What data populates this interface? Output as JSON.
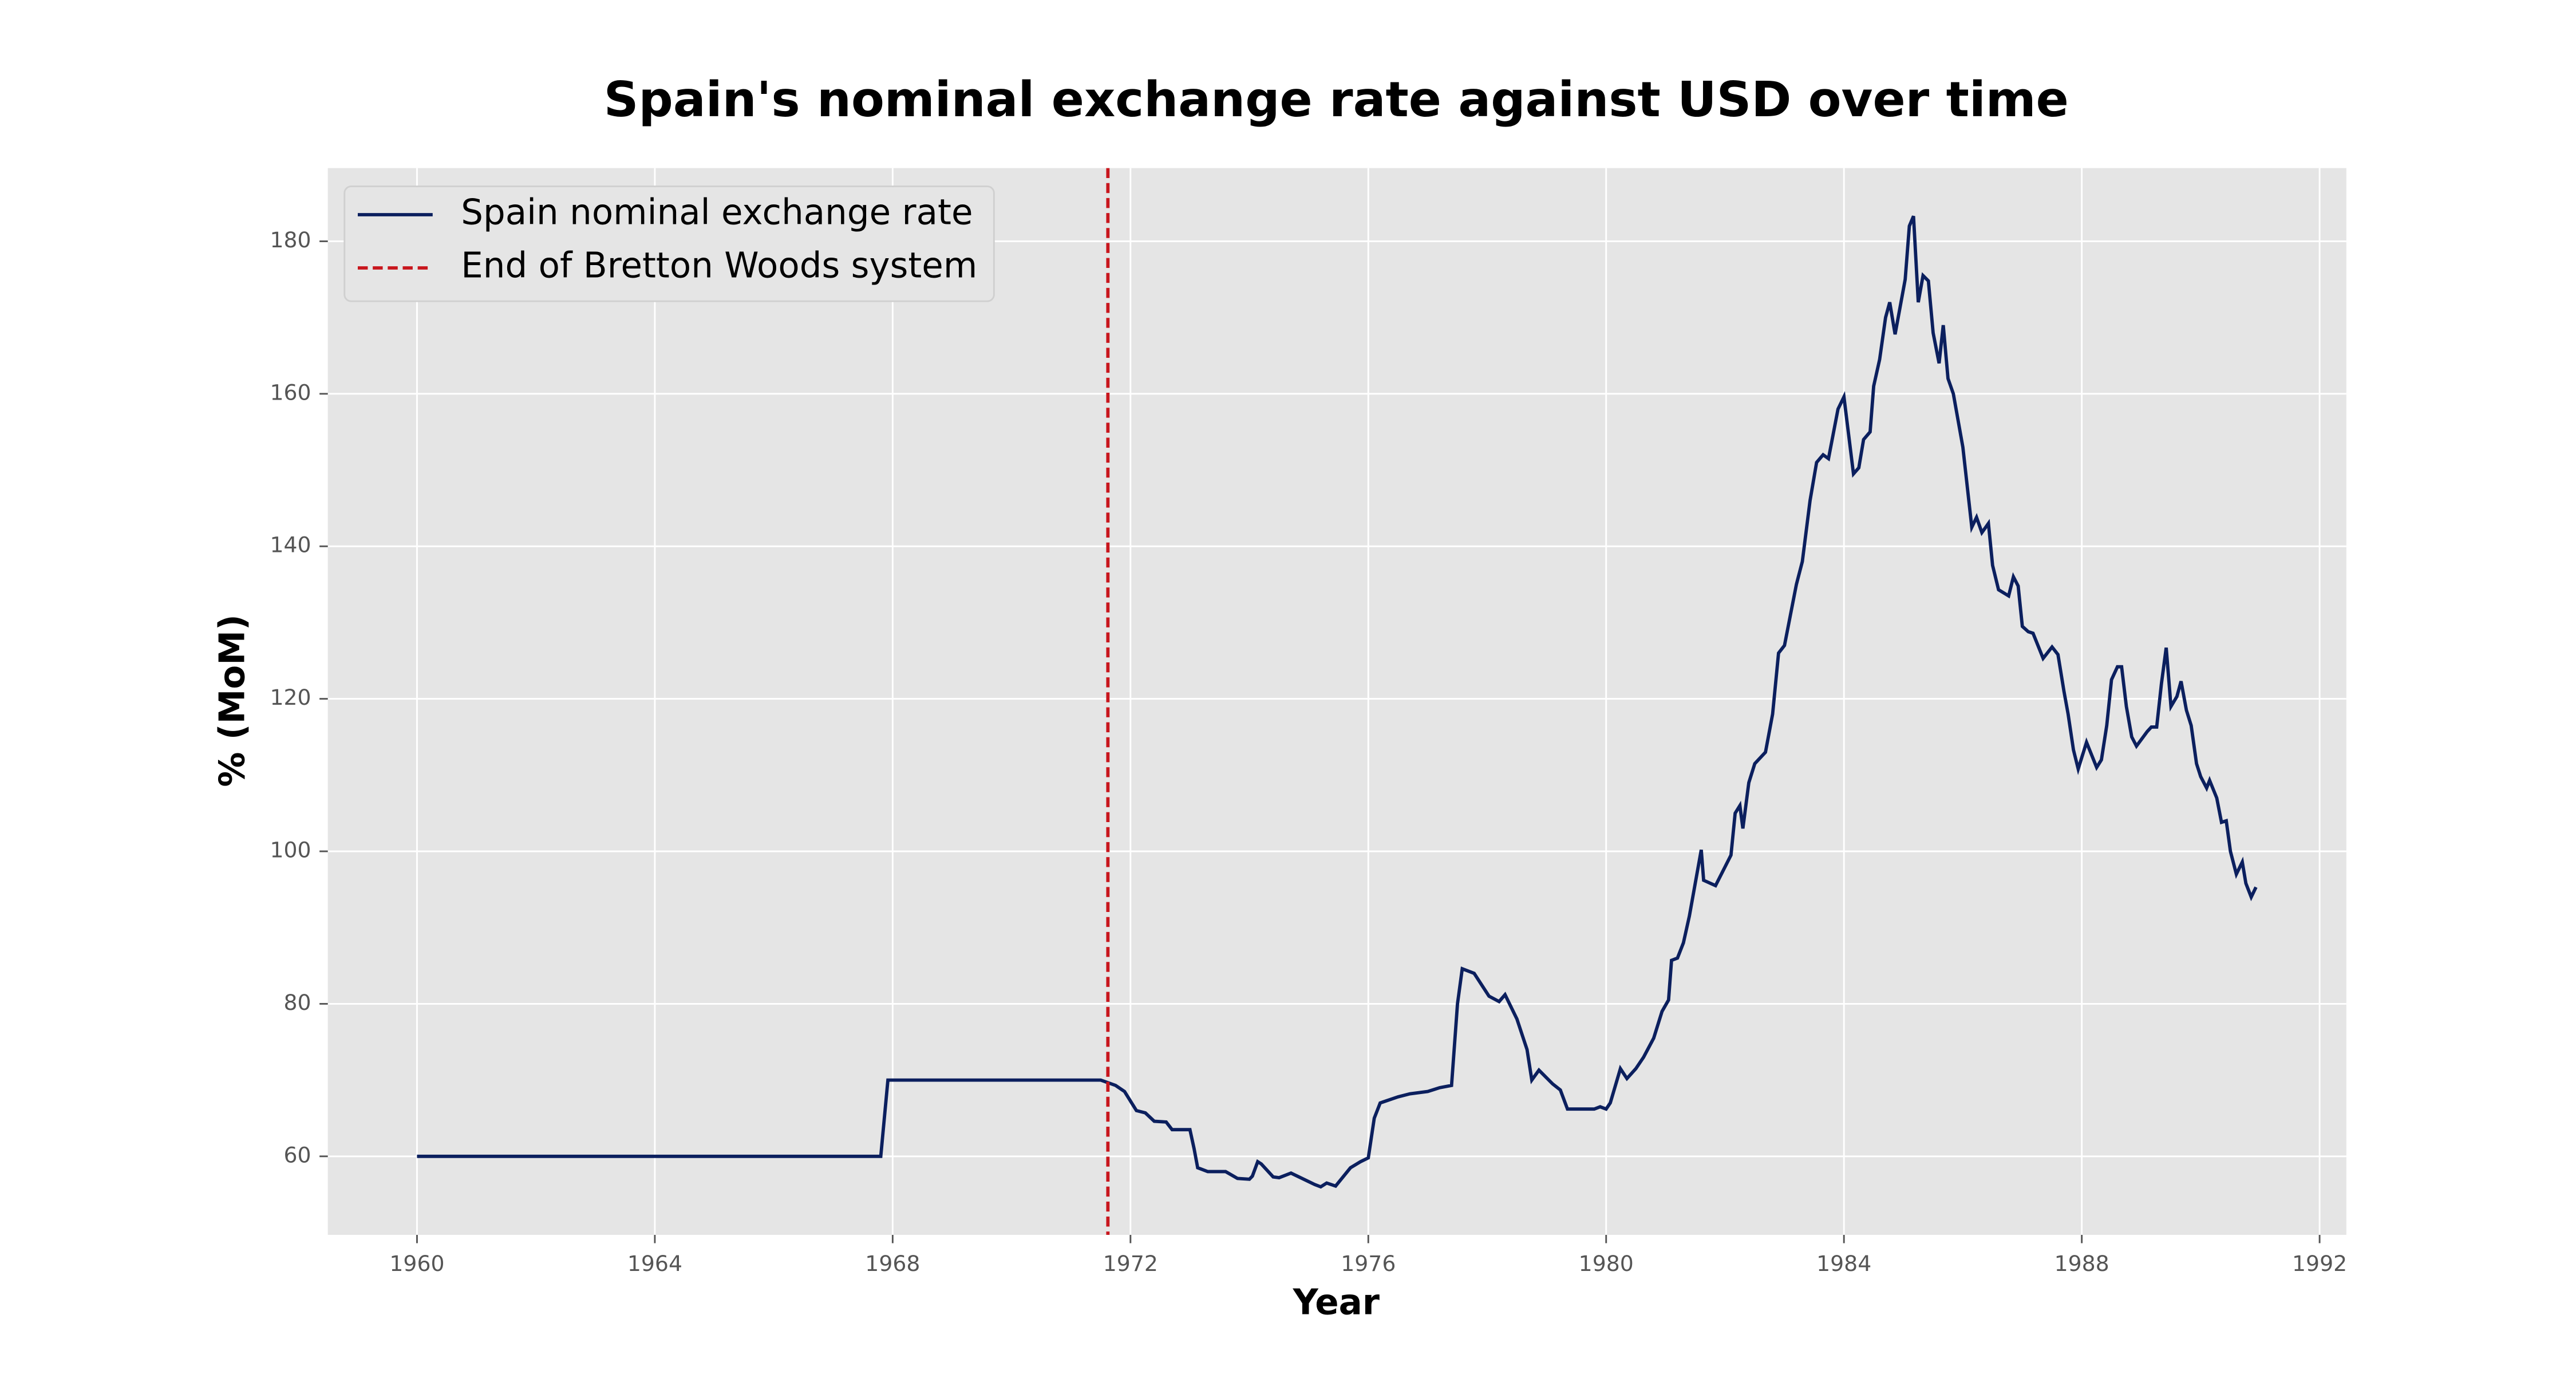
{
  "chart_data": {
    "type": "line",
    "title": "Spain's nominal exchange rate against USD over time",
    "xlabel": "Year",
    "ylabel": "% (MoM)",
    "x": [
      1960,
      1967.8,
      1967.92,
      1971.5,
      1971.75,
      1971.9,
      1972.1,
      1972.25,
      1972.4,
      1972.6,
      1972.7,
      1973.0,
      1973.07,
      1973.13,
      1973.3,
      1973.6,
      1973.8,
      1974.0,
      1974.05,
      1974.14,
      1974.2,
      1974.4,
      1974.5,
      1974.7,
      1975.1,
      1975.2,
      1975.3,
      1975.45,
      1975.7,
      1975.87,
      1976.0,
      1976.1,
      1976.2,
      1976.5,
      1976.7,
      1977.0,
      1977.2,
      1977.4,
      1977.5,
      1977.58,
      1977.78,
      1978.03,
      1978.2,
      1978.3,
      1978.5,
      1978.67,
      1978.75,
      1978.87,
      1979.1,
      1979.23,
      1979.35,
      1979.8,
      1979.9,
      1980.0,
      1980.07,
      1980.24,
      1980.35,
      1980.5,
      1980.63,
      1980.8,
      1980.94,
      1981.05,
      1981.1,
      1981.2,
      1981.3,
      1981.4,
      1981.6,
      1981.64,
      1981.84,
      1982.1,
      1982.17,
      1982.25,
      1982.3,
      1982.4,
      1982.5,
      1982.68,
      1982.8,
      1982.9,
      1983.0,
      1983.1,
      1983.2,
      1983.3,
      1983.43,
      1983.54,
      1983.65,
      1983.74,
      1983.9,
      1984.0,
      1984.16,
      1984.25,
      1984.33,
      1984.44,
      1984.5,
      1984.6,
      1984.7,
      1984.77,
      1984.86,
      1985.03,
      1985.1,
      1985.17,
      1985.25,
      1985.33,
      1985.42,
      1985.5,
      1985.6,
      1985.67,
      1985.75,
      1985.84,
      1986.0,
      1986.15,
      1986.23,
      1986.32,
      1986.43,
      1986.5,
      1986.6,
      1986.77,
      1986.85,
      1986.93,
      1987.0,
      1987.1,
      1987.18,
      1987.35,
      1987.5,
      1987.6,
      1987.7,
      1987.77,
      1987.86,
      1987.94,
      1988.08,
      1988.25,
      1988.33,
      1988.42,
      1988.5,
      1988.6,
      1988.67,
      1988.75,
      1988.84,
      1988.92,
      1989.1,
      1989.17,
      1989.26,
      1989.34,
      1989.42,
      1989.5,
      1989.6,
      1989.67,
      1989.76,
      1989.84,
      1989.93,
      1990.0,
      1990.1,
      1990.15,
      1990.27,
      1990.35,
      1990.43,
      1990.5,
      1990.6,
      1990.7,
      1990.76,
      1990.85,
      1990.93
    ],
    "series": [
      {
        "name": "Spain nominal exchange rate",
        "color": "#0b1f5e",
        "values": [
          60,
          60,
          70,
          70,
          69.3,
          68.5,
          66,
          65.7,
          64.6,
          64.5,
          63.5,
          63.5,
          61,
          58.5,
          58.0,
          58.0,
          57.1,
          57.0,
          57.4,
          59.3,
          59,
          57.3,
          57.2,
          57.8,
          56.3,
          56.0,
          56.5,
          56.1,
          58.5,
          59.3,
          59.8,
          65,
          67,
          67.8,
          68.2,
          68.5,
          69,
          69.3,
          80,
          84.6,
          84,
          81,
          80.3,
          81.2,
          78,
          74,
          70,
          71.3,
          69.5,
          68.7,
          66.2,
          66.2,
          66.5,
          66.2,
          67,
          71.5,
          70.2,
          71.5,
          73,
          75.5,
          79,
          80.5,
          85.7,
          86,
          88,
          91.5,
          100.2,
          96.2,
          95.5,
          99.5,
          105,
          106,
          103,
          109,
          111.5,
          113,
          118,
          126,
          127,
          131,
          135,
          138,
          146,
          151,
          152,
          151.5,
          158,
          159.6,
          149.5,
          150.3,
          154,
          155,
          161,
          164.5,
          170,
          172,
          167.8,
          175,
          182,
          183.3,
          172,
          175.5,
          174.8,
          168,
          164,
          169,
          162,
          160,
          153,
          142.5,
          143.8,
          141.8,
          143,
          137.5,
          134.3,
          133.5,
          136,
          134.8,
          129.5,
          128.8,
          128.6,
          125.3,
          126.8,
          125.8,
          121,
          118,
          113.3,
          110.8,
          114.3,
          111,
          112,
          116.5,
          122.5,
          124.2,
          124.2,
          119,
          115,
          113.8,
          115.7,
          116.3,
          116.3,
          122,
          126.7,
          119,
          120.3,
          122.3,
          118.5,
          116.5,
          111.5,
          109.8,
          108.3,
          109.3,
          107,
          103.8,
          104,
          100,
          97,
          98.6,
          95.8,
          94,
          95.3
        ]
      }
    ],
    "vlines": [
      {
        "name": "End of Bretton Woods system",
        "color": "#c8161d",
        "x": 1971.62
      }
    ],
    "xlim": [
      1958.5,
      1992.45
    ],
    "ylim": [
      49.7,
      189.6
    ],
    "xticks": [
      1960,
      1964,
      1968,
      1972,
      1976,
      1980,
      1984,
      1988,
      1992
    ],
    "yticks": [
      60,
      80,
      100,
      120,
      140,
      160,
      180
    ],
    "grid": true,
    "legend": "upper left"
  }
}
